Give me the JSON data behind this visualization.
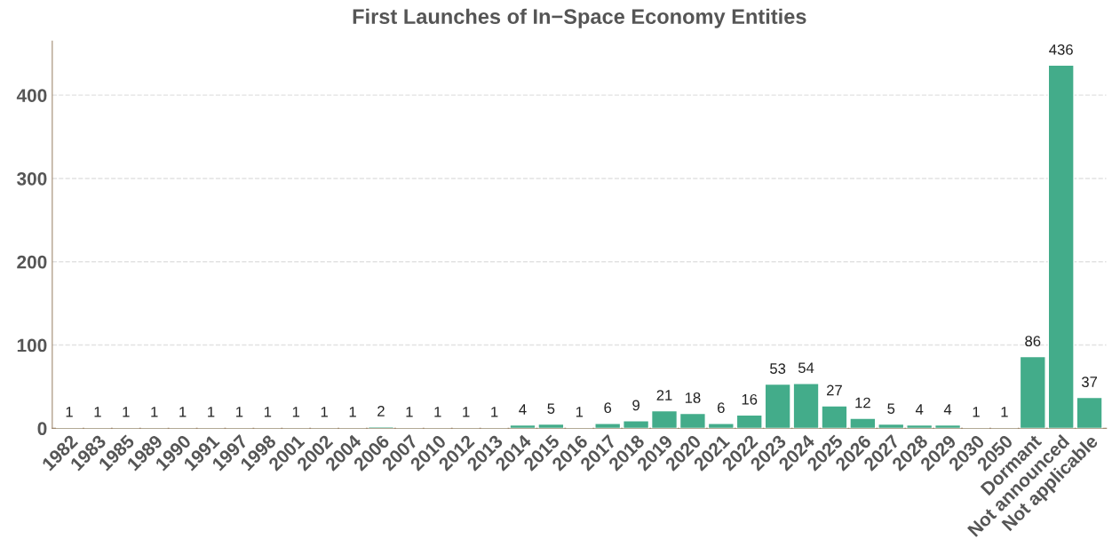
{
  "chart_data": {
    "type": "bar",
    "title": "First Launches of In−Space Economy Entities",
    "categories": [
      "1982",
      "1983",
      "1985",
      "1989",
      "1990",
      "1991",
      "1997",
      "1998",
      "2001",
      "2002",
      "2004",
      "2006",
      "2007",
      "2010",
      "2012",
      "2013",
      "2014",
      "2015",
      "2016",
      "2017",
      "2018",
      "2019",
      "2020",
      "2021",
      "2022",
      "2023",
      "2024",
      "2025",
      "2026",
      "2027",
      "2028",
      "2029",
      "2030",
      "2050",
      "Dormant",
      "Not announced",
      "Not applicable"
    ],
    "values": [
      1,
      1,
      1,
      1,
      1,
      1,
      1,
      1,
      1,
      1,
      1,
      2,
      1,
      1,
      1,
      1,
      4,
      5,
      1,
      6,
      9,
      21,
      18,
      6,
      16,
      53,
      54,
      27,
      12,
      5,
      4,
      4,
      1,
      1,
      86,
      436,
      37
    ],
    "color": "#43ac8a",
    "ylim": [
      0,
      465
    ],
    "yticks": [
      0,
      100,
      200,
      300,
      400
    ],
    "grid": "y",
    "data_labels": true
  }
}
